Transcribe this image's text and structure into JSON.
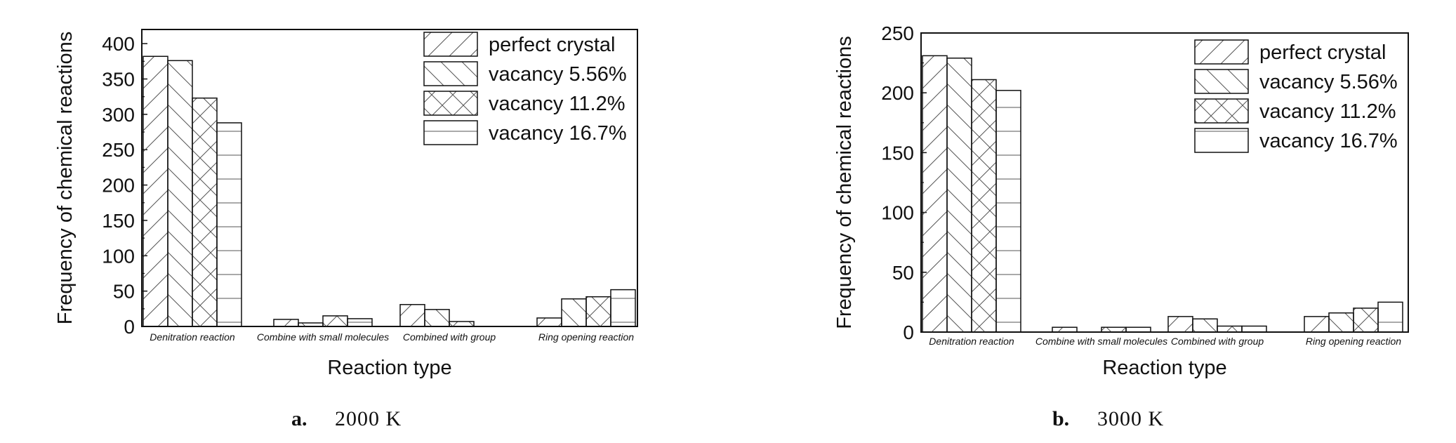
{
  "series_styles": [
    {
      "pattern": "diag-up"
    },
    {
      "pattern": "diag-down"
    },
    {
      "pattern": "cross"
    },
    {
      "pattern": "horiz"
    }
  ],
  "chart_data": [
    {
      "type": "bar",
      "caption_letter": "a.",
      "caption_text": "2000 K",
      "xlabel": "Reaction type",
      "ylabel": "Frequency of chemical reactions",
      "ylim": [
        0,
        420
      ],
      "yticks": [
        0,
        50,
        100,
        150,
        200,
        250,
        300,
        350,
        400
      ],
      "legend_position": "top-right",
      "grid": false,
      "categories": [
        "Denitration reaction",
        "Combine with small molecules",
        "Combined with group",
        "Ring opening reaction"
      ],
      "series": [
        {
          "name": "perfect crystal",
          "values": [
            382,
            10,
            31,
            12
          ]
        },
        {
          "name": "vacancy 5.56%",
          "values": [
            376,
            5,
            24,
            39
          ]
        },
        {
          "name": "vacancy 11.2%",
          "values": [
            323,
            15,
            7,
            42
          ]
        },
        {
          "name": "vacancy 16.7%",
          "values": [
            288,
            11,
            0,
            52
          ]
        }
      ]
    },
    {
      "type": "bar",
      "caption_letter": "b.",
      "caption_text": "3000 K",
      "xlabel": "Reaction type",
      "ylabel": "Frequency of chemical reactions",
      "ylim": [
        0,
        250
      ],
      "yticks": [
        0,
        50,
        100,
        150,
        200,
        250
      ],
      "legend_position": "top-right",
      "grid": false,
      "categories": [
        "Denitration reaction",
        "Combine with small molecules",
        "Combined with group",
        "Ring opening reaction"
      ],
      "series": [
        {
          "name": "perfect crystal",
          "values": [
            231,
            4,
            13,
            13
          ]
        },
        {
          "name": "vacancy 5.56%",
          "values": [
            229,
            0,
            11,
            16
          ]
        },
        {
          "name": "vacancy 11.2%",
          "values": [
            211,
            4,
            5,
            20
          ]
        },
        {
          "name": "vacancy 16.7%",
          "values": [
            202,
            4,
            5,
            25
          ]
        }
      ]
    }
  ]
}
